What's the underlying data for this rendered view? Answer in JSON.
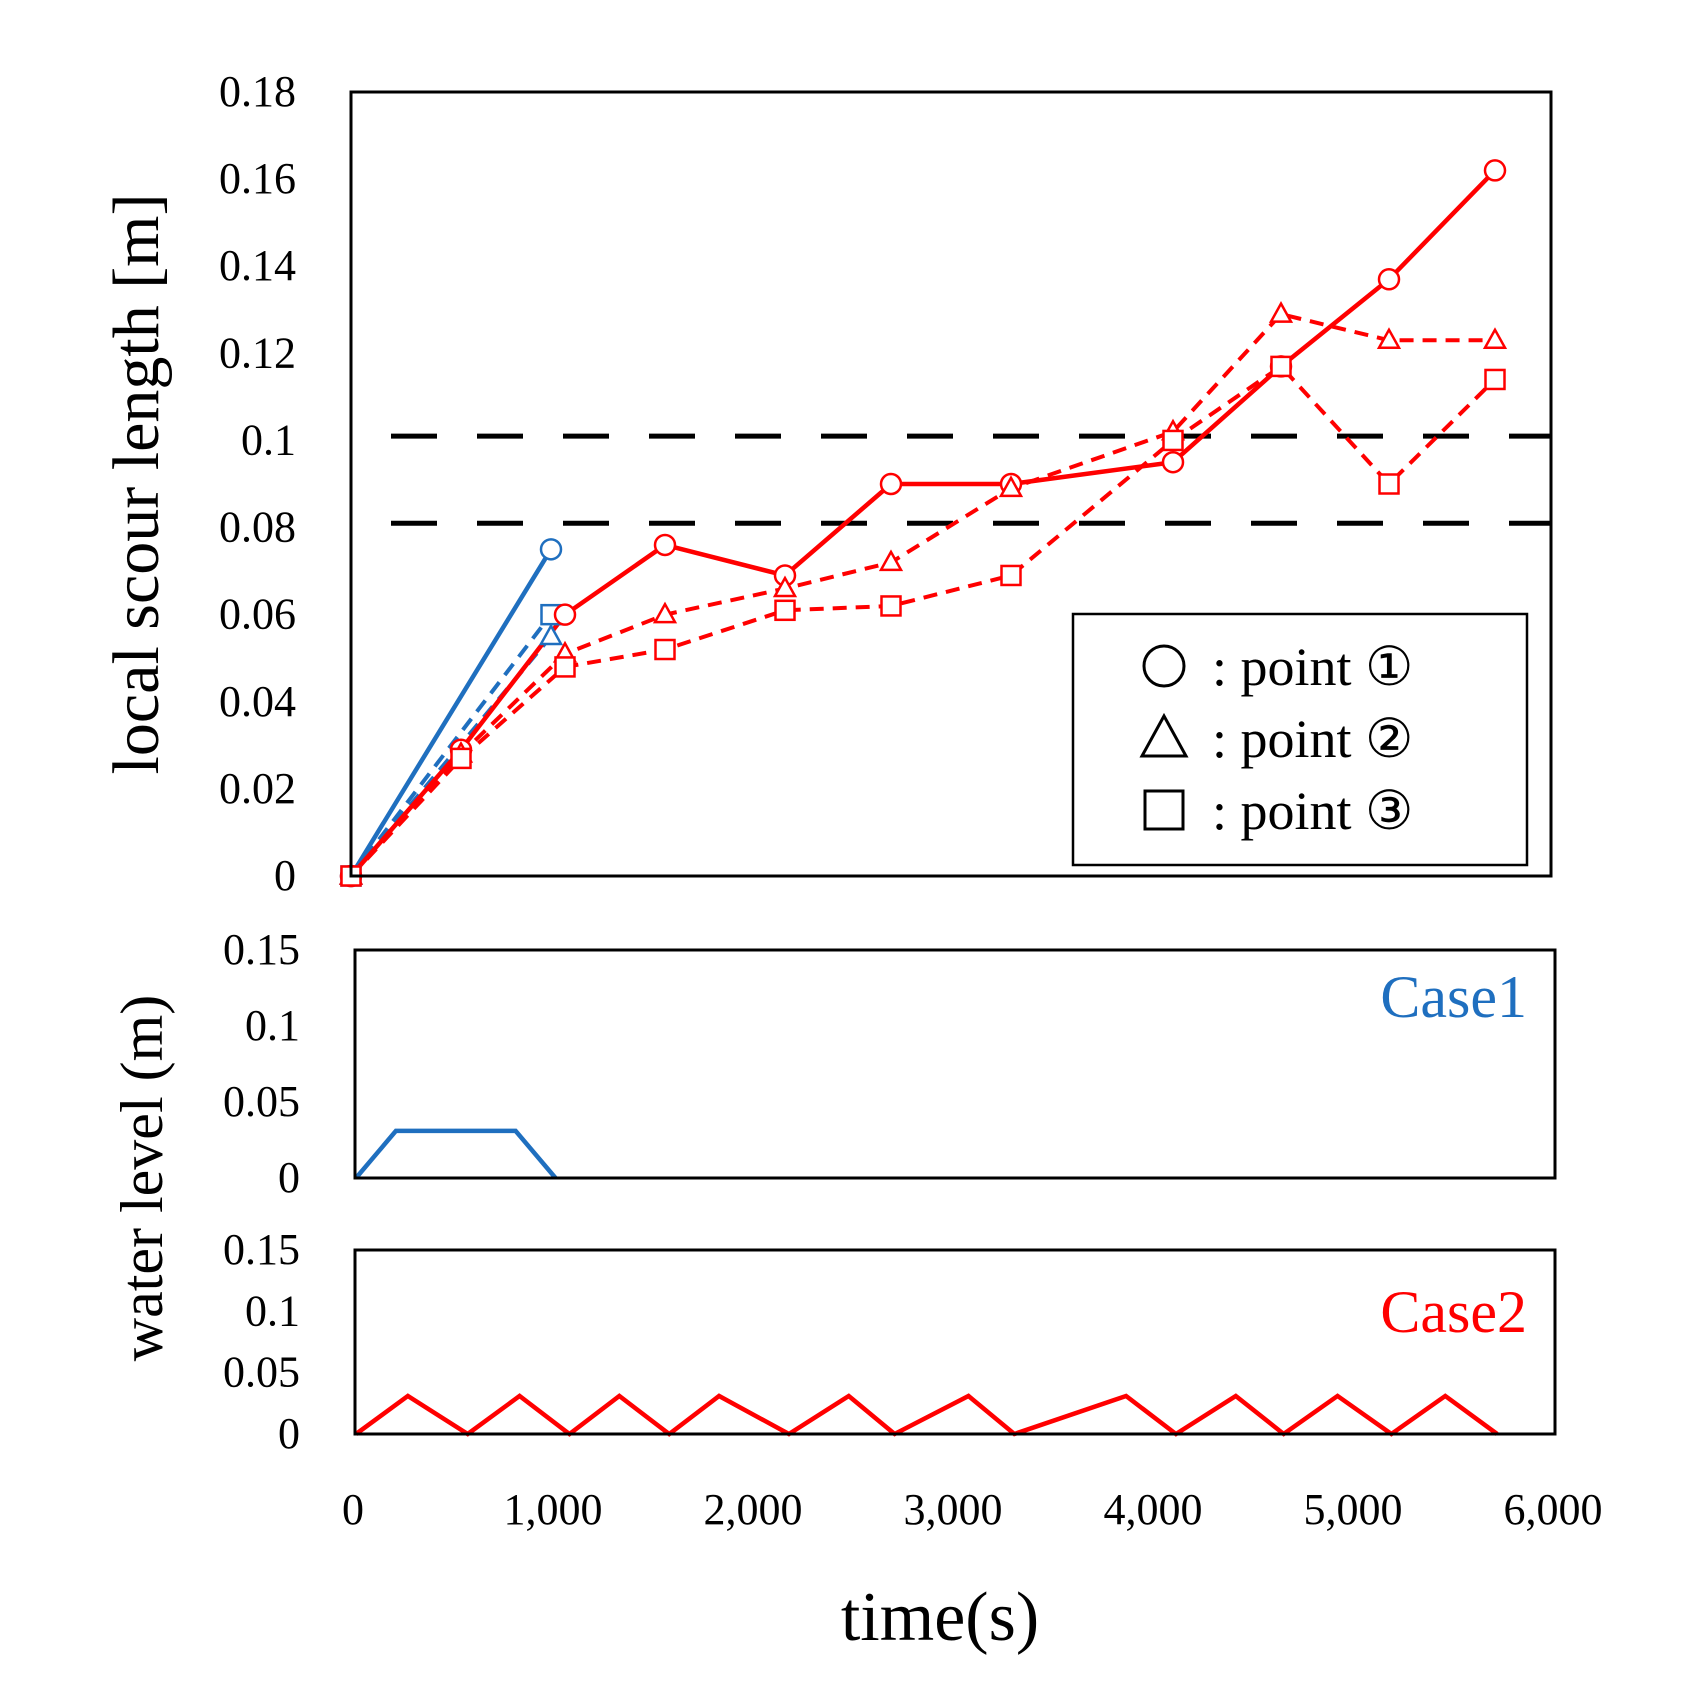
{
  "chart_data": [
    {
      "type": "line",
      "title": "",
      "xlabel": "time(s)",
      "ylabel": "local scour length [m]",
      "xlim": [
        0,
        6000
      ],
      "ylim": [
        0,
        0.18
      ],
      "x_ticks": [
        "0",
        "1,000",
        "2,000",
        "3,000",
        "4,000",
        "5,000",
        "6,000"
      ],
      "y_ticks": [
        "0",
        "0.02",
        "0.04",
        "0.06",
        "0.08",
        "0.1",
        "0.12",
        "0.14",
        "0.16",
        "0.18"
      ],
      "reference_lines": [
        0.081,
        0.101
      ],
      "legend": [
        {
          "marker": "circle",
          "label": ": point ①"
        },
        {
          "marker": "triangle",
          "label": ": point ②"
        },
        {
          "marker": "square",
          "label": ": point ③"
        }
      ],
      "series": [
        {
          "name": "Case1 point ①",
          "case": "Case1",
          "marker": "circle",
          "dash": false,
          "color": "#1f6fbf",
          "x": [
            0,
            1000
          ],
          "y": [
            0,
            0.075
          ]
        },
        {
          "name": "Case1 point ②",
          "case": "Case1",
          "marker": "triangle",
          "dash": true,
          "color": "#1f6fbf",
          "x": [
            0,
            1000
          ],
          "y": [
            0,
            0.055
          ]
        },
        {
          "name": "Case1 point ③",
          "case": "Case1",
          "marker": "square",
          "dash": true,
          "color": "#1f6fbf",
          "x": [
            0,
            1000
          ],
          "y": [
            0,
            0.06
          ]
        },
        {
          "name": "Case2 point ①",
          "case": "Case2",
          "marker": "circle",
          "dash": false,
          "color": "#ff0000",
          "x": [
            0,
            550,
            1070,
            1570,
            2170,
            2700,
            3300,
            4110,
            4650,
            5190,
            5720
          ],
          "y": [
            0,
            0.029,
            0.06,
            0.076,
            0.069,
            0.09,
            0.09,
            0.095,
            0.117,
            0.137,
            0.162
          ]
        },
        {
          "name": "Case2 point ②",
          "case": "Case2",
          "marker": "triangle",
          "dash": true,
          "color": "#ff0000",
          "x": [
            0,
            550,
            1070,
            1570,
            2170,
            2700,
            3300,
            4110,
            4650,
            5190,
            5720
          ],
          "y": [
            0,
            0.028,
            0.051,
            0.06,
            0.066,
            0.072,
            0.089,
            0.102,
            0.129,
            0.123,
            0.123
          ]
        },
        {
          "name": "Case2 point ③",
          "case": "Case2",
          "marker": "square",
          "dash": true,
          "color": "#ff0000",
          "x": [
            0,
            550,
            1070,
            1570,
            2170,
            2700,
            3300,
            4110,
            4650,
            5190,
            5720
          ],
          "y": [
            0,
            0.027,
            0.048,
            0.052,
            0.061,
            0.062,
            0.069,
            0.1,
            0.117,
            0.09,
            0.114
          ]
        }
      ]
    },
    {
      "type": "line",
      "title": "Case1",
      "title_color": "#1f6fbf",
      "ylabel": "water level (m)",
      "xlim": [
        0,
        6000
      ],
      "ylim": [
        0,
        0.15
      ],
      "y_ticks": [
        "0",
        "0.05",
        "0.1",
        "0.15"
      ],
      "series": [
        {
          "name": "Case1 water level",
          "color": "#1f6fbf",
          "x": [
            0,
            200,
            800,
            1000
          ],
          "y": [
            0,
            0.031,
            0.031,
            0
          ]
        }
      ]
    },
    {
      "type": "line",
      "title": "Case2",
      "title_color": "#ff0000",
      "ylabel": "water level (m)",
      "xlim": [
        0,
        6000
      ],
      "ylim": [
        0,
        0.15
      ],
      "y_ticks": [
        "0",
        "0.05",
        "0.1",
        "0.15"
      ],
      "series": [
        {
          "name": "Case2 water level",
          "color": "#ff0000",
          "x": [
            0,
            260,
            560,
            820,
            1070,
            1320,
            1570,
            1820,
            2170,
            2470,
            2700,
            3070,
            3300,
            3860,
            4110,
            4410,
            4650,
            4920,
            5190,
            5460,
            5720
          ],
          "y": [
            0,
            0.031,
            0,
            0.031,
            0,
            0.031,
            0,
            0.031,
            0,
            0.031,
            0,
            0.031,
            0,
            0.031,
            0,
            0.031,
            0,
            0.031,
            0,
            0.031,
            0
          ]
        }
      ]
    }
  ]
}
